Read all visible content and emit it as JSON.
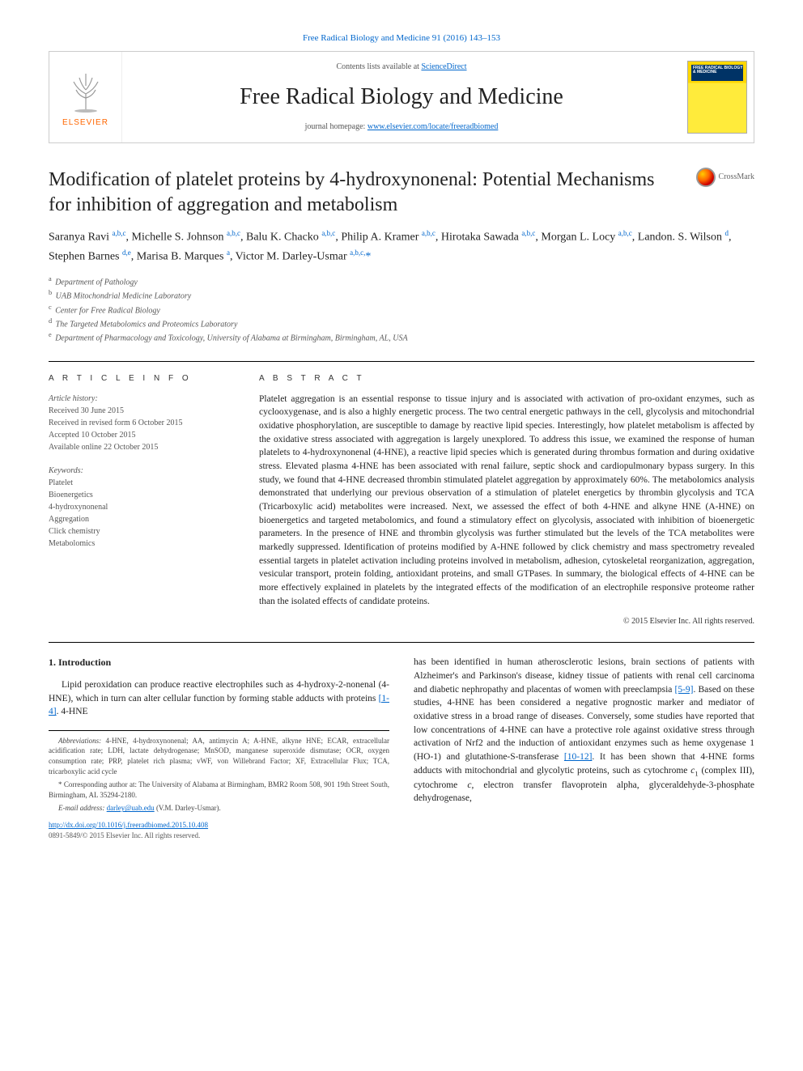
{
  "top_citation": "Free Radical Biology and Medicine 91 (2016) 143–153",
  "header": {
    "contents_prefix": "Contents lists available at ",
    "contents_link": "ScienceDirect",
    "journal_title": "Free Radical Biology and Medicine",
    "homepage_prefix": "journal homepage: ",
    "homepage_url": "www.elsevier.com/locate/freeradbiomed",
    "publisher": "ELSEVIER",
    "cover_label": "FREE RADICAL BIOLOGY & MEDICINE"
  },
  "crossmark_label": "CrossMark",
  "article_title": "Modification of platelet proteins by 4-hydroxynonenal: Potential Mechanisms for inhibition of aggregation and metabolism",
  "authors_html": "Saranya Ravi <sup>a,b,c</sup>, Michelle S. Johnson <sup>a,b,c</sup>, Balu K. Chacko <sup>a,b,c</sup>, Philip A. Kramer <sup>a,b,c</sup>, Hirotaka Sawada <sup>a,b,c</sup>, Morgan L. Locy <sup>a,b,c</sup>, Landon. S. Wilson <sup>d</sup>, Stephen Barnes <sup>d,e</sup>, Marisa B. Marques <sup>a</sup>, Victor M. Darley-Usmar <sup>a,b,c,</sup><span class='star'>*</span>",
  "affiliations": [
    {
      "sup": "a",
      "text": "Department of Pathology"
    },
    {
      "sup": "b",
      "text": "UAB Mitochondrial Medicine Laboratory"
    },
    {
      "sup": "c",
      "text": "Center for Free Radical Biology"
    },
    {
      "sup": "d",
      "text": "The Targeted Metabolomics and Proteomics Laboratory"
    },
    {
      "sup": "e",
      "text": "Department of Pharmacology and Toxicology, University of Alabama at Birmingham, Birmingham, AL, USA"
    }
  ],
  "article_info": {
    "label": "A R T I C L E  I N F O",
    "history_label": "Article history:",
    "received": "Received 30 June 2015",
    "revised": "Received in revised form 6 October 2015",
    "accepted": "Accepted 10 October 2015",
    "online": "Available online 22 October 2015",
    "keywords_label": "Keywords:",
    "keywords": [
      "Platelet",
      "Bioenergetics",
      "4-hydroxynonenal",
      "Aggregation",
      "Click chemistry",
      "Metabolomics"
    ]
  },
  "abstract": {
    "label": "A B S T R A C T",
    "text": "Platelet aggregation is an essential response to tissue injury and is associated with activation of pro-oxidant enzymes, such as cyclooxygenase, and is also a highly energetic process. The two central energetic pathways in the cell, glycolysis and mitochondrial oxidative phosphorylation, are susceptible to damage by reactive lipid species. Interestingly, how platelet metabolism is affected by the oxidative stress associated with aggregation is largely unexplored. To address this issue, we examined the response of human platelets to 4-hydroxynonenal (4-HNE), a reactive lipid species which is generated during thrombus formation and during oxidative stress. Elevated plasma 4-HNE has been associated with renal failure, septic shock and cardiopulmonary bypass surgery. In this study, we found that 4-HNE decreased thrombin stimulated platelet aggregation by approximately 60%. The metabolomics analysis demonstrated that underlying our previous observation of a stimulation of platelet energetics by thrombin glycolysis and TCA (Tricarboxylic acid) metabolites were increased. Next, we assessed the effect of both 4-HNE and alkyne HNE (A-HNE) on bioenergetics and targeted metabolomics, and found a stimulatory effect on glycolysis, associated with inhibition of bioenergetic parameters. In the presence of HNE and thrombin glycolysis was further stimulated but the levels of the TCA metabolites were markedly suppressed. Identification of proteins modified by A-HNE followed by click chemistry and mass spectrometry revealed essential targets in platelet activation including proteins involved in metabolism, adhesion, cytoskeletal reorganization, aggregation, vesicular transport, protein folding, antioxidant proteins, and small GTPases. In summary, the biological effects of 4-HNE can be more effectively explained in platelets by the integrated effects of the modification of an electrophile responsive proteome rather than the isolated effects of candidate proteins.",
    "copyright": "© 2015 Elsevier Inc. All rights reserved."
  },
  "intro": {
    "heading": "1. Introduction",
    "col1_p1": "Lipid peroxidation can produce reactive electrophiles such as 4-hydroxy-2-nonenal (4-HNE), which in turn can alter cellular function by forming stable adducts with proteins ",
    "col1_ref1": "[1-4]",
    "col1_p1_end": ". 4-HNE",
    "col2_p1": "has been identified in human atherosclerotic lesions, brain sections of patients with Alzheimer's and Parkinson's disease, kidney tissue of patients with renal cell carcinoma and diabetic nephropathy and placentas of women with preeclampsia ",
    "col2_ref1": "[5-9]",
    "col2_p1_cont": ". Based on these studies, 4-HNE has been considered a negative prognostic marker and mediator of oxidative stress in a broad range of diseases. Conversely, some studies have reported that low concentrations of 4-HNE can have a protective role against oxidative stress through activation of Nrf2 and the induction of antioxidant enzymes such as heme oxygenase 1 (HO-1) and glutathione-S-transferase ",
    "col2_ref2": "[10-12]",
    "col2_p1_end": ". It has been shown that 4-HNE forms adducts with mitochondrial and glycolytic proteins, such as cytochrome ",
    "col2_c1": "c",
    "col2_sub1": "1",
    "col2_complex": " (complex III), cytochrome ",
    "col2_c2": "c",
    "col2_tail": ", electron transfer flavoprotein alpha, glyceraldehyde-3-phosphate dehydrogenase,"
  },
  "footnotes": {
    "abbrev_label": "Abbreviations:",
    "abbrev_text": " 4-HNE, 4-hydroxynonenal; AA, antimycin A; A-HNE, alkyne HNE; ECAR, extracellular acidification rate; LDH, lactate dehydrogenase; MnSOD, manganese superoxide dismutase; OCR, oxygen consumption rate; PRP, platelet rich plasma; vWF, von Willebrand Factor; XF, Extracellular Flux; TCA, tricarboxylic acid cycle",
    "corr_marker": "*",
    "corr_text": "Corresponding author at: The University of Alabama at Birmingham, BMR2 Room 508, 901 19th Street South, Birmingham, AL 35294-2180.",
    "email_label": "E-mail address: ",
    "email": "darley@uab.edu",
    "email_name": " (V.M. Darley-Usmar)."
  },
  "doi": {
    "url": "http://dx.doi.org/10.1016/j.freeradbiomed.2015.10.408",
    "issn_line": "0891-5849/© 2015 Elsevier Inc. All rights reserved."
  },
  "colors": {
    "link": "#0066cc",
    "text": "#222222",
    "muted": "#555555",
    "elsevier_orange": "#ff6600",
    "cover_yellow": "#ffd700",
    "cover_blue": "#003366"
  }
}
